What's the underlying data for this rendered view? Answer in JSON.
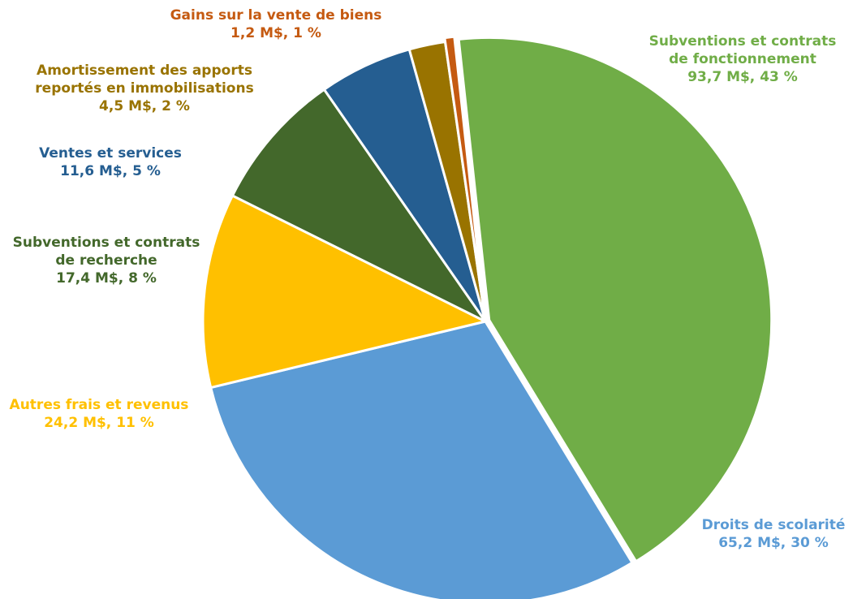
{
  "chart_data": {
    "type": "pie",
    "slices": [
      {
        "label_lines": [
          "Subventions et contrats",
          "de fonctionnement"
        ],
        "value": 93.7,
        "value_text": "93,7 M$, 43 %",
        "color": "#70AD47"
      },
      {
        "label_lines": [
          "Droits de scolarité"
        ],
        "value": 65.2,
        "value_text": "65,2 M$, 30 %",
        "color": "#5B9BD5"
      },
      {
        "label_lines": [
          "Autres frais et revenus"
        ],
        "value": 24.2,
        "value_text": "24,2 M$, 11 %",
        "color": "#FFC000"
      },
      {
        "label_lines": [
          "Subventions et contrats",
          "de recherche"
        ],
        "value": 17.4,
        "value_text": "17,4 M$, 8 %",
        "color": "#43682B"
      },
      {
        "label_lines": [
          "Ventes et services"
        ],
        "value": 11.6,
        "value_text": "11,6 M$, 5 %",
        "color": "#255E91"
      },
      {
        "label_lines": [
          "Amortissement des apports",
          "reportés en immobilisations"
        ],
        "value": 4.5,
        "value_text": "4,5 M$, 2 %",
        "color": "#997300"
      },
      {
        "label_lines": [
          "Gains sur la vente de biens"
        ],
        "value": 1.2,
        "value_text": "1,2 M$, 1 %",
        "color": "#C55A11"
      }
    ],
    "label_colors": [
      "#70AD47",
      "#5B9BD5",
      "#FFC000",
      "#43682B",
      "#255E91",
      "#997300",
      "#C55A11"
    ]
  }
}
